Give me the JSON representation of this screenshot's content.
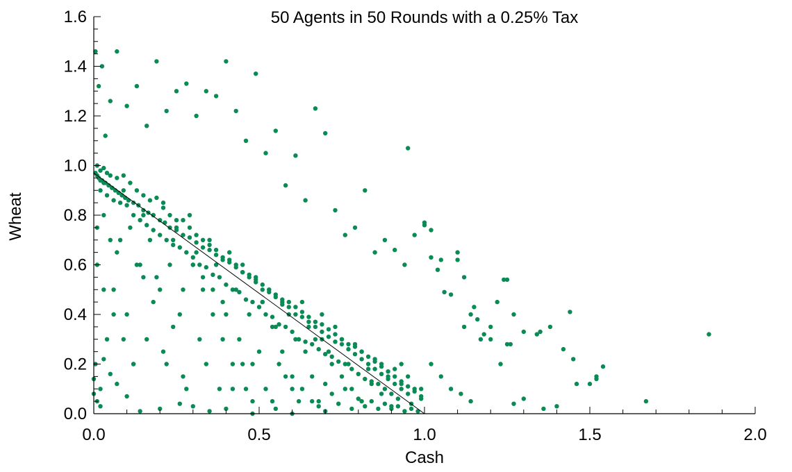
{
  "chart_data": {
    "type": "scatter",
    "title": "50 Agents in 50 Rounds with a 0.25% Tax",
    "xlabel": "Cash",
    "ylabel": "Wheat",
    "xlim": [
      0.0,
      2.0
    ],
    "ylim": [
      0.0,
      1.6
    ],
    "xticks": [
      0.0,
      0.5,
      1.0,
      1.5,
      2.0
    ],
    "xtick_labels": [
      "0.0",
      "0.5",
      "1.0",
      "1.5",
      "2.0"
    ],
    "yticks": [
      0.0,
      0.2,
      0.4,
      0.6,
      0.8,
      1.0,
      1.2,
      1.4,
      1.6
    ],
    "ytick_labels": [
      "0.0",
      "0.2",
      "0.4",
      "0.6",
      "0.8",
      "1.0",
      "1.2",
      "1.4",
      "1.6"
    ],
    "grid": false,
    "point_color": "#0a8a55",
    "fit_line": {
      "x": [
        0.0,
        1.0
      ],
      "y": [
        0.97,
        0.0
      ],
      "color": "#000000"
    },
    "series": [
      {
        "x": [
          0.005,
          0.01,
          0.015,
          0.02,
          0.025,
          0.03,
          0.035,
          0.045,
          0.055,
          0.065,
          0.075,
          0.085,
          0.095,
          0.105,
          0.12,
          0.135,
          0.15,
          0.165,
          0.18,
          0.2,
          0.215,
          0.23,
          0.25,
          0.27,
          0.29,
          0.31,
          0.33,
          0.35,
          0.37,
          0.39,
          0.41,
          0.43,
          0.45,
          0.47,
          0.49,
          0.51,
          0.53,
          0.55,
          0.57,
          0.59,
          0.61,
          0.63,
          0.65,
          0.67,
          0.69,
          0.71,
          0.73,
          0.75,
          0.77,
          0.79,
          0.81,
          0.83,
          0.85,
          0.87,
          0.89,
          0.91,
          0.93,
          0.95,
          0.97,
          0.99,
          0.01,
          0.02,
          0.03,
          0.04,
          0.05,
          0.07,
          0.09,
          0.11,
          0.13,
          0.15,
          0.17,
          0.19,
          0.21,
          0.23,
          0.25,
          0.27,
          0.29,
          0.31,
          0.33,
          0.35,
          0.37,
          0.39,
          0.41,
          0.43,
          0.45,
          0.47,
          0.49,
          0.51,
          0.53,
          0.55,
          0.57,
          0.59,
          0.61,
          0.63,
          0.65,
          0.67,
          0.69,
          0.71,
          0.73,
          0.75,
          0.77,
          0.79,
          0.81,
          0.83,
          0.85,
          0.87,
          0.89,
          0.91,
          0.93,
          0.95,
          0.02,
          0.04,
          0.06,
          0.08,
          0.1,
          0.12,
          0.14,
          0.16,
          0.18,
          0.2,
          0.22,
          0.24,
          0.26,
          0.28,
          0.3,
          0.32,
          0.34,
          0.36,
          0.38,
          0.4,
          0.42,
          0.44,
          0.46,
          0.48,
          0.5,
          0.52,
          0.54,
          0.56,
          0.58,
          0.6,
          0.62,
          0.64,
          0.66,
          0.68,
          0.7,
          0.72,
          0.74,
          0.76,
          0.78,
          0.8,
          0.82,
          0.84,
          0.86,
          0.88,
          0.9,
          0.92,
          0.005,
          0.015,
          0.025,
          0.035,
          0.05,
          0.07,
          0.1,
          0.13,
          0.16,
          0.19,
          0.22,
          0.25,
          0.28,
          0.31,
          0.34,
          0.37,
          0.4,
          0.43,
          0.46,
          0.49,
          0.52,
          0.55,
          0.58,
          0.61,
          0.64,
          0.67,
          0.7,
          0.73,
          0.76,
          0.79,
          0.82,
          0.85,
          0.88,
          0.91,
          0.94,
          0.97,
          1.0,
          1.02,
          1.04,
          1.06,
          1.08,
          1.1,
          1.12,
          1.14,
          1.16,
          1.18,
          1.2,
          1.22,
          1.24,
          1.26,
          0.01,
          0.03,
          0.06,
          0.09,
          0.12,
          0.15,
          0.18,
          0.21,
          0.24,
          0.27,
          0.3,
          0.33,
          0.36,
          0.39,
          0.42,
          0.45,
          0.48,
          0.51,
          0.54,
          0.57,
          0.6,
          0.63,
          0.66,
          0.69,
          0.72,
          0.75,
          0.78,
          0.81,
          0.84,
          0.87,
          0.9,
          0.93,
          0.96,
          0.99,
          1.02,
          1.05,
          1.08,
          1.11,
          1.14,
          1.17,
          1.2,
          1.23,
          1.25,
          1.27,
          1.3,
          1.34,
          1.36,
          1.4,
          1.42,
          1.44,
          1.46,
          1.52,
          1.54,
          1.67,
          1.86,
          0.005,
          0.02,
          0.04,
          0.06,
          0.08,
          0.1,
          0.12,
          0.14,
          0.16,
          0.18,
          0.2,
          0.22,
          0.24,
          0.26,
          0.28,
          0.3,
          0.32,
          0.34,
          0.36,
          0.38,
          0.4,
          0.42,
          0.44,
          0.46,
          0.48,
          0.5,
          0.52,
          0.54,
          0.56,
          0.58,
          0.6,
          0.62,
          0.64,
          0.66,
          0.68,
          0.7,
          0.72,
          0.74,
          0.76,
          0.78,
          0.8,
          0.82,
          0.84,
          0.86,
          0.88,
          0.9,
          0.92,
          0.94,
          0.96,
          0.98,
          0.01,
          0.03,
          0.05,
          0.07,
          0.09,
          0.11,
          0.13,
          0.15,
          0.17,
          0.19,
          0.21,
          0.23,
          0.25,
          0.27,
          0.29,
          0.31,
          0.33,
          0.35,
          0.37,
          0.39,
          0.41,
          0.43,
          0.45,
          0.47,
          0.49,
          0.51,
          0.53,
          0.55,
          0.57,
          0.59,
          0.61,
          0.63,
          0.65,
          0.67,
          0.69,
          0.71,
          0.73,
          0.75,
          0.77,
          0.79,
          0.81,
          0.83,
          0.85,
          0.87,
          0.89,
          0.91,
          0.93,
          0.95,
          0.97,
          0.99,
          0.0,
          0.0,
          0.01,
          0.02,
          0.03,
          0.05,
          0.07,
          0.1,
          0.14,
          0.2,
          0.26,
          0.3,
          0.35,
          0.4,
          0.48,
          0.55,
          0.6,
          0.68,
          0.7,
          0.95,
          1.0,
          1.02,
          1.05,
          1.1,
          1.12,
          1.15,
          1.25,
          1.27,
          1.3,
          1.35,
          1.38,
          1.45,
          1.5,
          1.52
        ],
        "y": [
          0.97,
          0.96,
          0.95,
          0.94,
          0.94,
          0.93,
          0.93,
          0.92,
          0.91,
          0.9,
          0.89,
          0.88,
          0.87,
          0.86,
          0.85,
          0.84,
          0.82,
          0.81,
          0.8,
          0.78,
          0.77,
          0.75,
          0.74,
          0.72,
          0.71,
          0.69,
          0.67,
          0.66,
          0.64,
          0.62,
          0.61,
          0.59,
          0.57,
          0.55,
          0.54,
          0.52,
          0.5,
          0.48,
          0.46,
          0.45,
          0.43,
          0.41,
          0.39,
          0.37,
          0.36,
          0.34,
          0.32,
          0.3,
          0.28,
          0.27,
          0.25,
          0.23,
          0.21,
          0.19,
          0.17,
          0.15,
          0.13,
          0.11,
          0.09,
          0.07,
          1.0,
          0.98,
          0.99,
          0.97,
          0.96,
          0.95,
          0.96,
          0.93,
          0.9,
          0.88,
          0.86,
          0.87,
          0.83,
          0.8,
          0.78,
          0.78,
          0.75,
          0.72,
          0.7,
          0.68,
          0.66,
          0.63,
          0.62,
          0.6,
          0.57,
          0.56,
          0.53,
          0.5,
          0.49,
          0.47,
          0.44,
          0.43,
          0.4,
          0.39,
          0.37,
          0.35,
          0.33,
          0.31,
          0.29,
          0.28,
          0.26,
          0.24,
          0.22,
          0.2,
          0.18,
          0.16,
          0.14,
          0.12,
          0.1,
          0.08,
          0.9,
          0.88,
          0.86,
          0.85,
          0.84,
          0.8,
          0.78,
          0.76,
          0.74,
          0.72,
          0.7,
          0.68,
          0.67,
          0.65,
          0.63,
          0.6,
          0.59,
          0.56,
          0.55,
          0.52,
          0.5,
          0.49,
          0.46,
          0.45,
          0.43,
          0.4,
          0.39,
          0.36,
          0.35,
          0.33,
          0.3,
          0.29,
          0.28,
          0.26,
          0.24,
          0.23,
          0.21,
          0.2,
          0.18,
          0.16,
          0.14,
          0.13,
          0.12,
          0.1,
          0.08,
          0.06,
          1.46,
          1.32,
          1.4,
          1.12,
          1.26,
          1.46,
          1.24,
          1.32,
          1.16,
          1.42,
          1.22,
          1.3,
          1.33,
          1.2,
          1.3,
          1.28,
          1.42,
          1.22,
          1.1,
          1.37,
          1.05,
          1.14,
          0.92,
          1.04,
          0.86,
          1.23,
          1.13,
          0.82,
          0.72,
          0.75,
          0.9,
          0.65,
          0.7,
          0.66,
          0.6,
          0.72,
          0.76,
          0.63,
          0.58,
          0.49,
          0.48,
          0.62,
          0.35,
          0.4,
          0.38,
          0.32,
          0.3,
          0.45,
          0.54,
          0.28,
          0.6,
          0.5,
          0.4,
          0.3,
          0.2,
          0.55,
          0.45,
          0.25,
          0.35,
          0.15,
          0.6,
          0.5,
          0.4,
          0.3,
          0.1,
          0.2,
          0.05,
          0.45,
          0.35,
          0.25,
          0.15,
          0.1,
          0.05,
          0.3,
          0.2,
          0.15,
          0.1,
          0.05,
          0.12,
          0.08,
          0.03,
          0.2,
          0.04,
          0.1,
          0.2,
          0.15,
          0.1,
          0.08,
          0.05,
          0.3,
          0.35,
          0.2,
          0.28,
          0.04,
          0.06,
          0.32,
          0.02,
          0.03,
          0.26,
          0.41,
          0.12,
          0.15,
          0.19,
          0.05,
          0.32,
          0.2,
          0.1,
          0.3,
          0.5,
          0.7,
          0.4,
          0.2,
          0.6,
          0.3,
          0.8,
          0.5,
          0.2,
          0.7,
          0.4,
          0.1,
          0.6,
          0.3,
          0.2,
          0.5,
          0.1,
          0.4,
          0.2,
          0.3,
          0.1,
          0.2,
          0.25,
          0.1,
          0.05,
          0.2,
          0.15,
          0.1,
          0.05,
          0.25,
          0.15,
          0.05,
          0.12,
          0.08,
          0.04,
          0.1,
          0.02,
          0.06,
          0.03,
          0.05,
          0.02,
          0.04,
          0.02,
          0.03,
          0.01,
          0.02,
          0.01,
          0.75,
          0.8,
          0.7,
          0.65,
          0.9,
          0.75,
          0.6,
          0.8,
          0.7,
          0.55,
          0.85,
          0.6,
          0.75,
          0.5,
          0.8,
          0.65,
          0.55,
          0.7,
          0.6,
          0.45,
          0.65,
          0.5,
          0.6,
          0.4,
          0.55,
          0.45,
          0.5,
          0.35,
          0.45,
          0.4,
          0.3,
          0.45,
          0.35,
          0.3,
          0.4,
          0.25,
          0.35,
          0.3,
          0.2,
          0.28,
          0.25,
          0.18,
          0.22,
          0.2,
          0.15,
          0.18,
          0.12,
          0.15,
          0.1,
          0.06,
          0.14,
          0.08,
          0.05,
          0.03,
          0.22,
          0.16,
          0.12,
          0.07,
          0.01,
          0.02,
          0.04,
          0.03,
          0.01,
          0.02,
          0.0,
          0.02,
          0.0,
          0.03,
          0.01,
          1.07,
          0.77,
          0.74,
          0.62,
          0.65,
          0.55,
          0.43,
          0.54,
          0.4,
          0.33,
          0.33,
          0.35,
          0.22,
          0.12,
          0.14
        ]
      }
    ]
  }
}
